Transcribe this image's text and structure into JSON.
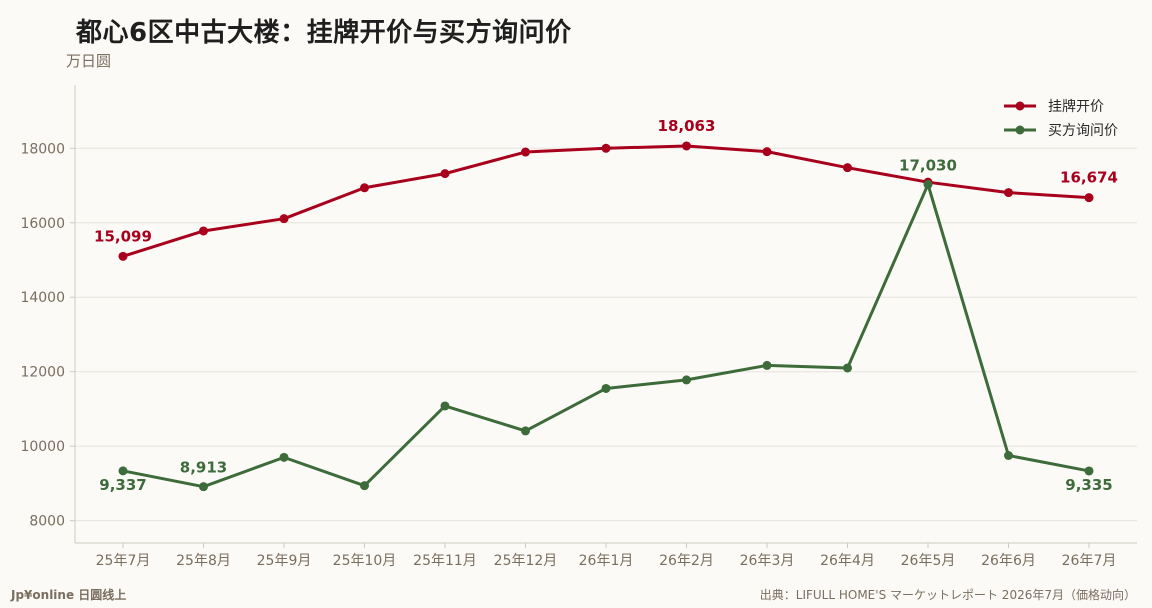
{
  "chart_data": {
    "type": "line",
    "title": "都心6区中古大楼：挂牌开价与买方询问价",
    "ylabel": "万日圆",
    "categories": [
      "25年7月",
      "25年8月",
      "25年9月",
      "25年10月",
      "25年11月",
      "25年12月",
      "26年1月",
      "26年2月",
      "26年3月",
      "26年4月",
      "26年5月",
      "26年6月",
      "26年7月"
    ],
    "ylim": [
      7400,
      19700
    ],
    "yticks": [
      8000,
      10000,
      12000,
      14000,
      16000,
      18000
    ],
    "grid": "horizontal",
    "legend_position": "top-right",
    "series": [
      {
        "name": "挂牌开价",
        "color": "#a8001c",
        "values": [
          15099,
          15780,
          16110,
          16940,
          17320,
          17900,
          18000,
          18063,
          17910,
          17480,
          17090,
          16810,
          16674
        ],
        "labels": [
          {
            "index": 0,
            "text": "15,099"
          },
          {
            "index": 7,
            "text": "18,063"
          },
          {
            "index": 12,
            "text": "16,674"
          }
        ]
      },
      {
        "name": "买方询问价",
        "color": "#3d6b3a",
        "values": [
          9337,
          8913,
          9700,
          8940,
          11080,
          10410,
          11550,
          11780,
          12170,
          12100,
          17030,
          9750,
          9335
        ],
        "labels": [
          {
            "index": 0,
            "text": "9,337"
          },
          {
            "index": 1,
            "text": "8,913"
          },
          {
            "index": 10,
            "text": "17,030"
          },
          {
            "index": 12,
            "text": "9,335"
          }
        ]
      }
    ]
  },
  "footer": {
    "brand": "Jp¥online 日圆线上",
    "source": "出典：LIFULL HOME'S マーケットレポート 2026年7月（価格动向）"
  }
}
